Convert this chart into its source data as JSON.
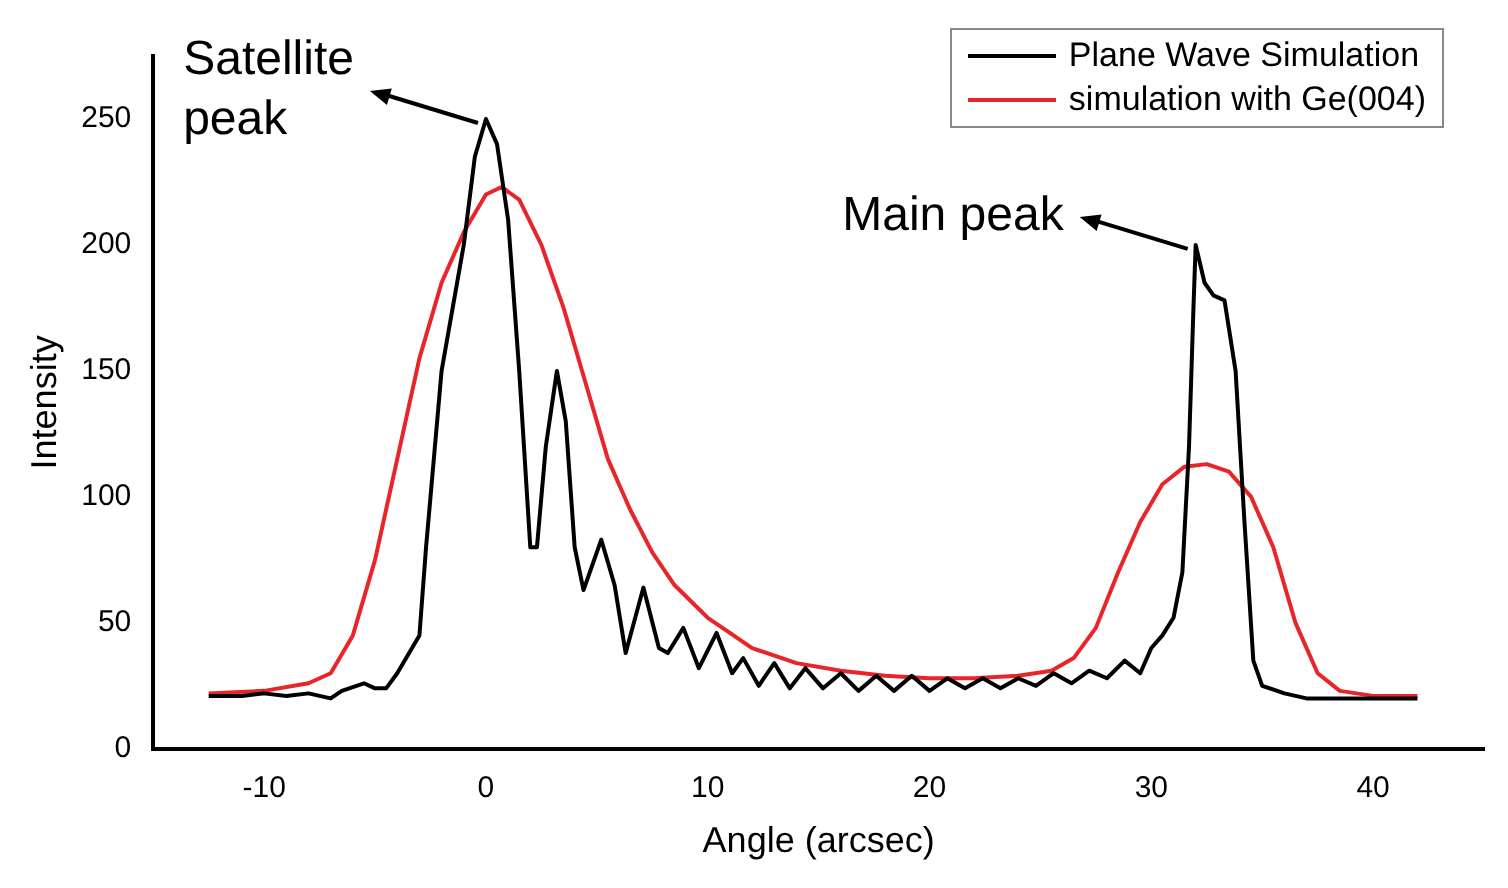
{
  "chart_data": {
    "type": "line",
    "xlabel": "Angle (arcsec)",
    "ylabel": "Intensity",
    "xlim": [
      -15,
      45
    ],
    "xticks": [
      -10,
      0,
      10,
      20,
      30,
      40
    ],
    "ylim": [
      0,
      275
    ],
    "yticks": [
      0,
      50,
      100,
      150,
      200,
      250
    ],
    "grid": false,
    "legend": "top right",
    "marker": "none",
    "line_style": "solid",
    "annotations": [
      {
        "text": "Satellite peak",
        "x": 0,
        "y": 250
      },
      {
        "text": "Main peak",
        "x": 32,
        "y": 200
      }
    ],
    "series": [
      {
        "name": "Plane Wave Simulation",
        "color": "#000000",
        "x": [
          -12.5,
          -11,
          -10,
          -9,
          -8,
          -7,
          -6.5,
          -5.5,
          -5,
          -4.5,
          -4,
          -3,
          -2.7,
          -2,
          -1.5,
          -1,
          -0.5,
          0,
          0.5,
          1,
          1.5,
          2,
          2.3,
          2.7,
          3.2,
          3.6,
          4,
          4.4,
          5.2,
          5.8,
          6.3,
          7.1,
          7.8,
          8.2,
          8.9,
          9.6,
          10.4,
          11.1,
          11.6,
          12.3,
          13,
          13.7,
          14.4,
          15.2,
          16,
          16.8,
          17.6,
          18.4,
          19.2,
          20,
          20.8,
          21.6,
          22.4,
          23.2,
          24,
          24.8,
          25.6,
          26.4,
          27.2,
          28,
          28.8,
          29.5,
          30,
          30.5,
          31,
          31.4,
          31.7,
          31.9,
          32,
          32.4,
          32.8,
          33.3,
          33.8,
          34.2,
          34.6,
          35,
          36,
          37,
          38,
          40,
          42
        ],
        "values": [
          21,
          21,
          22,
          21,
          22,
          20,
          23,
          26,
          24,
          24,
          30,
          45,
          80,
          150,
          175,
          200,
          235,
          250,
          240,
          210,
          150,
          80,
          80,
          120,
          150,
          130,
          80,
          63,
          83,
          65,
          38,
          64,
          40,
          38,
          48,
          32,
          46,
          30,
          36,
          25,
          34,
          24,
          32,
          24,
          30,
          23,
          29,
          23,
          29,
          23,
          28,
          24,
          28,
          24,
          28,
          25,
          30,
          26,
          31,
          28,
          35,
          30,
          40,
          45,
          52,
          70,
          120,
          175,
          200,
          185,
          180,
          178,
          150,
          90,
          35,
          25,
          22,
          20,
          20,
          20,
          20
        ]
      },
      {
        "name": "simulation with Ge(004)",
        "color": "#e8262a",
        "x": [
          -12.5,
          -10,
          -8,
          -7,
          -6,
          -5,
          -4,
          -3,
          -2,
          -1,
          0,
          0.7,
          1.5,
          2.5,
          3.5,
          4.5,
          5.5,
          6.5,
          7.5,
          8.5,
          10,
          11,
          12,
          14,
          16,
          18,
          20,
          22,
          24,
          25.5,
          26.5,
          27.5,
          28.5,
          29.5,
          30.5,
          31.5,
          32.5,
          33.5,
          34.5,
          35.5,
          36.5,
          37.5,
          38.5,
          40,
          42
        ],
        "values": [
          22,
          23,
          26,
          30,
          45,
          75,
          115,
          155,
          185,
          205,
          220,
          223,
          218,
          200,
          175,
          145,
          115,
          95,
          78,
          65,
          52,
          46,
          40,
          34,
          31,
          29,
          28,
          28,
          29,
          31,
          36,
          48,
          70,
          90,
          105,
          112,
          113,
          110,
          100,
          80,
          50,
          30,
          23,
          21,
          21
        ]
      }
    ]
  }
}
